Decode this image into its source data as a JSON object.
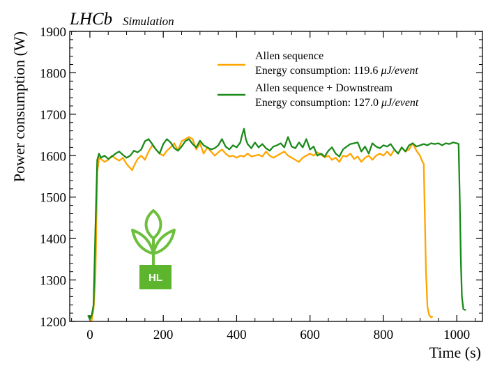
{
  "chart_data": {
    "type": "line",
    "title": "LHCb",
    "subtitle": "Simulation",
    "xlabel": "Time (s)",
    "ylabel": "Power consumption (W)",
    "xlim": [
      -55,
      1070
    ],
    "ylim": [
      1200,
      1900
    ],
    "xticks": [
      0,
      200,
      400,
      600,
      800,
      1000
    ],
    "yticks": [
      1200,
      1300,
      1400,
      1500,
      1600,
      1700,
      1800,
      1900
    ],
    "legend_position": "top-right",
    "series": [
      {
        "name": "Allen sequence",
        "legend_line1": "Allen sequence",
        "legend_line2_prefix": "Energy consumption: 119.6 ",
        "legend_line2_unit": "μJ/event",
        "color": "#FFA500",
        "x": [
          0,
          5,
          10,
          15,
          20,
          25,
          30,
          40,
          50,
          60,
          70,
          80,
          90,
          100,
          110,
          115,
          120,
          130,
          140,
          150,
          160,
          170,
          180,
          190,
          200,
          210,
          220,
          230,
          240,
          250,
          260,
          270,
          280,
          290,
          300,
          310,
          320,
          330,
          340,
          350,
          360,
          370,
          380,
          390,
          400,
          410,
          420,
          430,
          440,
          450,
          460,
          470,
          480,
          490,
          500,
          510,
          520,
          530,
          540,
          550,
          560,
          570,
          580,
          590,
          600,
          610,
          620,
          630,
          640,
          650,
          660,
          670,
          680,
          690,
          700,
          710,
          720,
          730,
          740,
          750,
          760,
          770,
          780,
          790,
          800,
          810,
          820,
          830,
          840,
          850,
          860,
          870,
          880,
          890,
          900,
          905,
          910,
          913,
          916,
          920,
          925,
          930,
          935
        ],
        "y": [
          1200,
          1203,
          1230,
          1300,
          1560,
          1595,
          1592,
          1585,
          1590,
          1600,
          1593,
          1588,
          1595,
          1580,
          1570,
          1565,
          1575,
          1592,
          1600,
          1590,
          1610,
          1625,
          1615,
          1605,
          1600,
          1612,
          1620,
          1630,
          1612,
          1635,
          1640,
          1645,
          1640,
          1615,
          1630,
          1605,
          1620,
          1610,
          1600,
          1608,
          1615,
          1605,
          1598,
          1600,
          1595,
          1600,
          1598,
          1605,
          1598,
          1600,
          1602,
          1598,
          1610,
          1600,
          1595,
          1600,
          1605,
          1610,
          1600,
          1595,
          1590,
          1585,
          1595,
          1600,
          1605,
          1600,
          1608,
          1602,
          1596,
          1600,
          1590,
          1595,
          1585,
          1600,
          1598,
          1605,
          1592,
          1598,
          1585,
          1595,
          1600,
          1590,
          1600,
          1605,
          1600,
          1610,
          1600,
          1615,
          1605,
          1620,
          1610,
          1615,
          1630,
          1612,
          1600,
          1588,
          1580,
          1450,
          1320,
          1235,
          1215,
          1210,
          1212
        ]
      },
      {
        "name": "Allen sequence + Downstream",
        "legend_line1": "Allen sequence + Downstream",
        "legend_line2_prefix": "Energy consumption: 127.0 ",
        "legend_line2_unit": "μJ/event",
        "color": "#1A8A1A",
        "x": [
          -5,
          0,
          5,
          10,
          15,
          20,
          25,
          30,
          40,
          50,
          60,
          70,
          80,
          90,
          100,
          110,
          120,
          130,
          140,
          150,
          160,
          170,
          180,
          190,
          200,
          210,
          220,
          230,
          240,
          250,
          260,
          270,
          280,
          290,
          300,
          310,
          320,
          330,
          340,
          350,
          360,
          370,
          380,
          390,
          400,
          410,
          415,
          420,
          425,
          430,
          440,
          450,
          460,
          470,
          480,
          490,
          500,
          510,
          520,
          530,
          540,
          550,
          560,
          570,
          580,
          590,
          600,
          610,
          620,
          630,
          640,
          650,
          660,
          670,
          680,
          690,
          700,
          710,
          720,
          730,
          740,
          750,
          760,
          770,
          780,
          790,
          800,
          810,
          820,
          830,
          840,
          850,
          860,
          870,
          880,
          890,
          900,
          910,
          920,
          930,
          940,
          950,
          960,
          970,
          980,
          990,
          1000,
          1005,
          1008,
          1011,
          1014,
          1018,
          1022,
          1025
        ],
        "y": [
          1215,
          1205,
          1215,
          1240,
          1420,
          1590,
          1605,
          1595,
          1600,
          1592,
          1598,
          1605,
          1610,
          1602,
          1595,
          1600,
          1612,
          1608,
          1615,
          1635,
          1640,
          1628,
          1615,
          1605,
          1628,
          1640,
          1632,
          1618,
          1612,
          1622,
          1635,
          1640,
          1628,
          1620,
          1636,
          1625,
          1620,
          1615,
          1618,
          1625,
          1640,
          1622,
          1615,
          1625,
          1620,
          1632,
          1650,
          1665,
          1640,
          1628,
          1618,
          1632,
          1620,
          1628,
          1618,
          1612,
          1622,
          1625,
          1630,
          1620,
          1645,
          1622,
          1618,
          1632,
          1620,
          1640,
          1615,
          1622,
          1600,
          1605,
          1598,
          1612,
          1620,
          1605,
          1598,
          1615,
          1622,
          1628,
          1630,
          1632,
          1610,
          1622,
          1605,
          1630,
          1622,
          1618,
          1625,
          1622,
          1628,
          1615,
          1605,
          1620,
          1610,
          1625,
          1630,
          1622,
          1625,
          1628,
          1625,
          1630,
          1628,
          1630,
          1625,
          1630,
          1628,
          1632,
          1630,
          1628,
          1500,
          1350,
          1260,
          1230,
          1228,
          1228
        ]
      }
    ]
  }
}
